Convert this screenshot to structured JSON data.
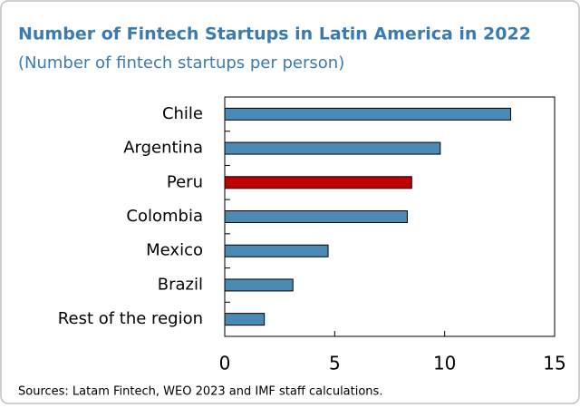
{
  "chart_data": {
    "type": "hbar",
    "title": "Number of Fintech Startups in Latin America in 2022",
    "subtitle": "(Number of fintech startups per person)",
    "categories": [
      "Chile",
      "Argentina",
      "Peru",
      "Colombia",
      "Mexico",
      "Brazil",
      "Rest of the region"
    ],
    "values": [
      13.0,
      9.8,
      8.5,
      8.3,
      4.7,
      3.1,
      1.8
    ],
    "colors": [
      "#4a8bb5",
      "#4a8bb5",
      "#c00000",
      "#4a8bb5",
      "#4a8bb5",
      "#4a8bb5",
      "#4a8bb5"
    ],
    "xlim": [
      0,
      15
    ],
    "xticks": [
      0,
      5,
      10,
      15
    ],
    "source": "Sources: Latam Fintech, WEO 2023 and IMF staff calculations."
  }
}
